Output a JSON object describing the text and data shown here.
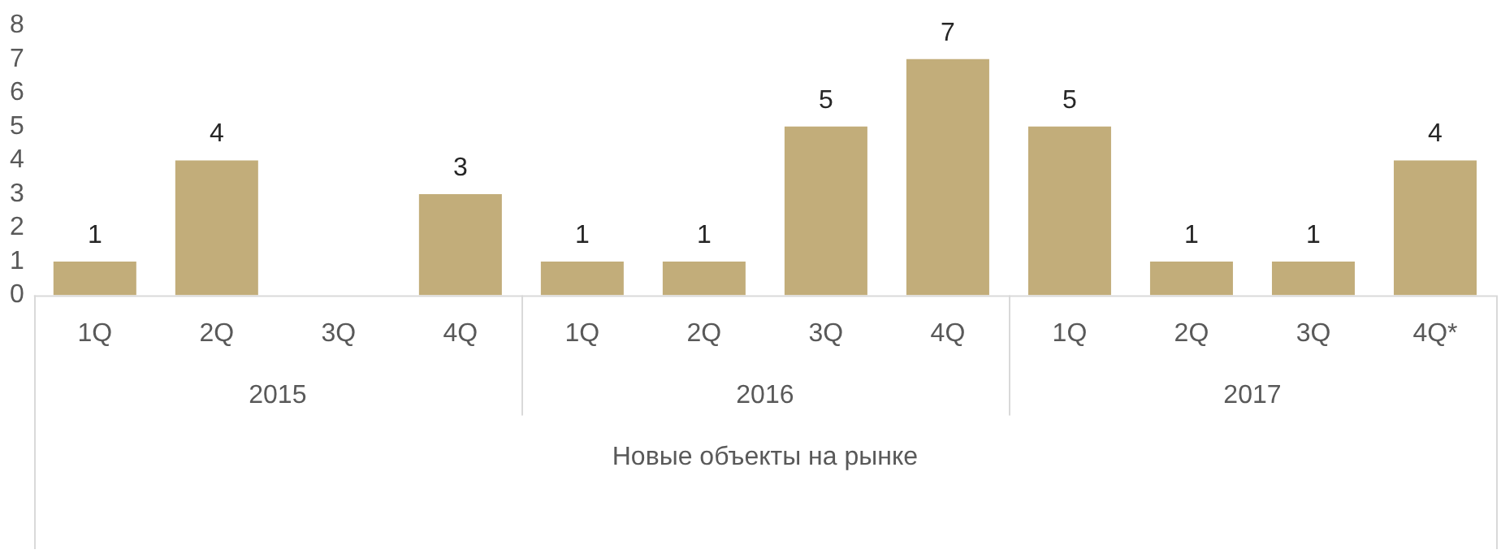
{
  "chart_data": {
    "type": "bar",
    "xlabel": "Новые объекты на рынке",
    "categories": [
      "1Q",
      "2Q",
      "3Q",
      "4Q",
      "1Q",
      "2Q",
      "3Q",
      "4Q",
      "1Q",
      "2Q",
      "3Q",
      "4Q*"
    ],
    "values": [
      1,
      4,
      0,
      3,
      1,
      1,
      5,
      7,
      5,
      1,
      1,
      4
    ],
    "value_labels": [
      "1",
      "4",
      null,
      "3",
      "1",
      "1",
      "5",
      "7",
      "5",
      "1",
      "1",
      "4"
    ],
    "color": "#c2ad7a",
    "ylim": [
      0,
      8
    ],
    "yticks": [
      0,
      1,
      2,
      3,
      4,
      5,
      6,
      7,
      8
    ],
    "grid": false,
    "legend": false,
    "annotations": [
      "2015",
      "2016",
      "2017"
    ]
  }
}
